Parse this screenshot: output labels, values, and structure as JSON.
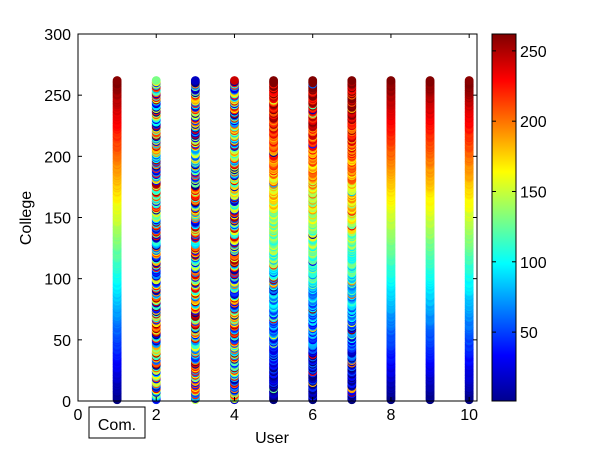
{
  "chart_data": {
    "type": "scatter",
    "xlabel": "User",
    "ylabel": "College",
    "xlim": [
      0,
      10.2
    ],
    "ylim": [
      0,
      300
    ],
    "x_ticks": [
      "0",
      "2",
      "4",
      "6",
      "8",
      "10"
    ],
    "y_ticks": [
      "0",
      "50",
      "100",
      "150",
      "200",
      "250",
      "300"
    ],
    "grid": false,
    "legend": "none",
    "annotation": "Com.",
    "colormap": "jet",
    "color_encoding": "per-user college ranking mapped onto the jet colormap (1 to 262)",
    "colorbar": {
      "range": [
        1,
        262
      ],
      "ticks": [
        "50",
        "100",
        "150",
        "200",
        "250"
      ]
    },
    "y_range": [
      1,
      262
    ],
    "series": [
      {
        "x": 1,
        "pattern": "smooth"
      },
      {
        "x": 2,
        "pattern": "scrambled"
      },
      {
        "x": 3,
        "pattern": "scrambled"
      },
      {
        "x": 4,
        "pattern": "scrambled"
      },
      {
        "x": 5,
        "pattern": "mostly-smooth"
      },
      {
        "x": 6,
        "pattern": "mostly-smooth"
      },
      {
        "x": 7,
        "pattern": "mostly-smooth"
      },
      {
        "x": 8,
        "pattern": "smooth"
      },
      {
        "x": 9,
        "pattern": "smooth"
      },
      {
        "x": 10,
        "pattern": "smooth"
      }
    ]
  }
}
